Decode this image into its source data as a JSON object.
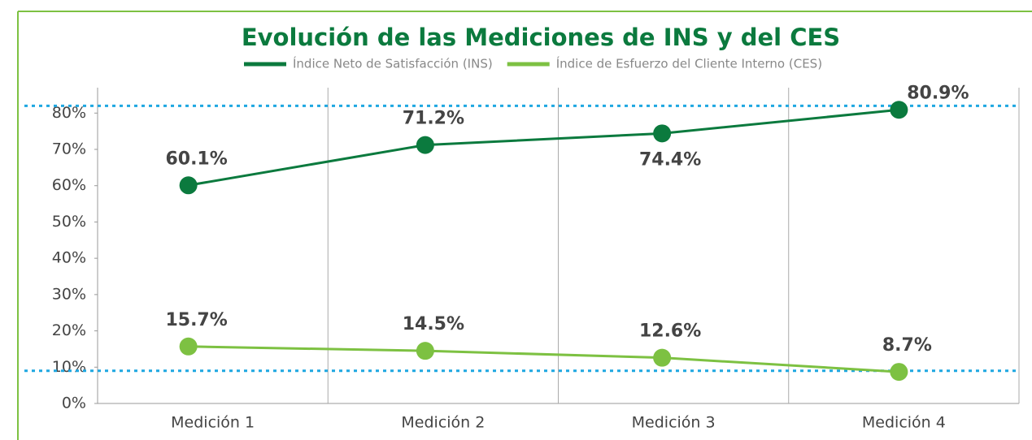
{
  "chart_data": {
    "type": "line",
    "title": "Evolución de las Mediciones de INS y del CES",
    "categories": [
      "Medición 1",
      "Medición 2",
      "Medición 3",
      "Medición 4"
    ],
    "series": [
      {
        "name": "Índice Neto de Satisfacción (INS)",
        "color": "#0b7a3e",
        "values": [
          60.1,
          71.2,
          74.4,
          80.9
        ],
        "value_labels": [
          "60.1%",
          "71.2%",
          "74.4%",
          "80.9%"
        ]
      },
      {
        "name": "Índice de Esfuerzo del Cliente Interno (CES)",
        "color": "#7dc142",
        "values": [
          15.7,
          14.5,
          12.6,
          8.7
        ],
        "value_labels": [
          "15.7%",
          "14.5%",
          "12.6%",
          "8.7%"
        ]
      }
    ],
    "reference_lines": {
      "color": "#1ea7e1",
      "values": [
        82,
        9
      ]
    },
    "ylim": [
      0,
      87
    ],
    "yticks": [
      {
        "value": 0,
        "label": "0%"
      },
      {
        "value": 10,
        "label": "10%"
      },
      {
        "value": 20,
        "label": "20%"
      },
      {
        "value": 30,
        "label": "30%"
      },
      {
        "value": 40,
        "label": "40%"
      },
      {
        "value": 50,
        "label": "50%"
      },
      {
        "value": 60,
        "label": "60%"
      },
      {
        "value": 70,
        "label": "70%"
      },
      {
        "value": 80,
        "label": "80%"
      }
    ],
    "legend": "top"
  }
}
